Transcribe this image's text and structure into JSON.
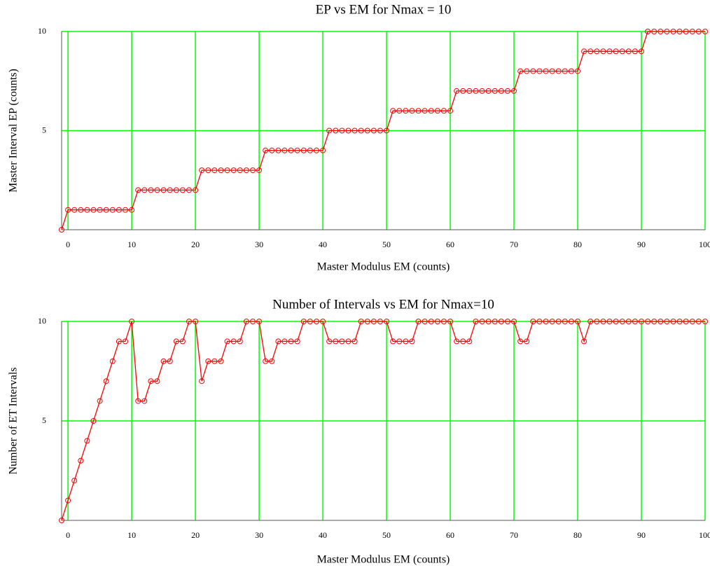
{
  "chart_data": [
    {
      "type": "line",
      "title": "EP vs EM for Nmax = 10",
      "x_label": "Master Modulus EM (counts)",
      "y_label": "Master Interval EP (counts)",
      "x": [
        -1,
        0,
        1,
        2,
        3,
        4,
        5,
        6,
        7,
        8,
        9,
        10,
        11,
        12,
        13,
        14,
        15,
        16,
        17,
        18,
        19,
        20,
        21,
        22,
        23,
        24,
        25,
        26,
        27,
        28,
        29,
        30,
        31,
        32,
        33,
        34,
        35,
        36,
        37,
        38,
        39,
        40,
        41,
        42,
        43,
        44,
        45,
        46,
        47,
        48,
        49,
        50,
        51,
        52,
        53,
        54,
        55,
        56,
        57,
        58,
        59,
        60,
        61,
        62,
        63,
        64,
        65,
        66,
        67,
        68,
        69,
        70,
        71,
        72,
        73,
        74,
        75,
        76,
        77,
        78,
        79,
        80,
        81,
        82,
        83,
        84,
        85,
        86,
        87,
        88,
        89,
        90,
        91,
        92,
        93,
        94,
        95,
        96,
        97,
        98,
        99,
        100
      ],
      "series": [
        {
          "color": "#ff0000",
          "values": [
            0,
            1,
            1,
            1,
            1,
            1,
            1,
            1,
            1,
            1,
            1,
            1,
            2,
            2,
            2,
            2,
            2,
            2,
            2,
            2,
            2,
            2,
            3,
            3,
            3,
            3,
            3,
            3,
            3,
            3,
            3,
            3,
            4,
            4,
            4,
            4,
            4,
            4,
            4,
            4,
            4,
            4,
            5,
            5,
            5,
            5,
            5,
            5,
            5,
            5,
            5,
            5,
            6,
            6,
            6,
            6,
            6,
            6,
            6,
            6,
            6,
            6,
            7,
            7,
            7,
            7,
            7,
            7,
            7,
            7,
            7,
            7,
            8,
            8,
            8,
            8,
            8,
            8,
            8,
            8,
            8,
            8,
            9,
            9,
            9,
            9,
            9,
            9,
            9,
            9,
            9,
            9,
            10,
            10,
            10,
            10,
            10,
            10,
            10,
            10,
            10,
            10
          ]
        }
      ],
      "xlim": [
        -1,
        100
      ],
      "xticks": [
        0,
        10,
        20,
        30,
        40,
        50,
        60,
        70,
        80,
        90,
        100
      ],
      "ylim": [
        0,
        10
      ],
      "yticks": [
        5,
        10
      ],
      "grid": true,
      "grid_color": "#00ff00"
    },
    {
      "type": "line",
      "title": "Number of Intervals vs EM for Nmax=10",
      "x_label": "Master Modulus EM (counts)",
      "y_label": "Number of ET Intervals",
      "x": [
        -1,
        0,
        1,
        2,
        3,
        4,
        5,
        6,
        7,
        8,
        9,
        10,
        11,
        12,
        13,
        14,
        15,
        16,
        17,
        18,
        19,
        20,
        21,
        22,
        23,
        24,
        25,
        26,
        27,
        28,
        29,
        30,
        31,
        32,
        33,
        34,
        35,
        36,
        37,
        38,
        39,
        40,
        41,
        42,
        43,
        44,
        45,
        46,
        47,
        48,
        49,
        50,
        51,
        52,
        53,
        54,
        55,
        56,
        57,
        58,
        59,
        60,
        61,
        62,
        63,
        64,
        65,
        66,
        67,
        68,
        69,
        70,
        71,
        72,
        73,
        74,
        75,
        76,
        77,
        78,
        79,
        80,
        81,
        82,
        83,
        84,
        85,
        86,
        87,
        88,
        89,
        90,
        91,
        92,
        93,
        94,
        95,
        96,
        97,
        98,
        99,
        100
      ],
      "series": [
        {
          "color": "#ff0000",
          "values": [
            0,
            1,
            2,
            3,
            4,
            5,
            6,
            7,
            8,
            9,
            9,
            10,
            6,
            6,
            7,
            7,
            8,
            8,
            9,
            9,
            10,
            10,
            7,
            8,
            8,
            8,
            9,
            9,
            9,
            10,
            10,
            10,
            8,
            8,
            9,
            9,
            9,
            9,
            10,
            10,
            10,
            10,
            9,
            9,
            9,
            9,
            9,
            10,
            10,
            10,
            10,
            10,
            9,
            9,
            9,
            9,
            10,
            10,
            10,
            10,
            10,
            10,
            9,
            9,
            9,
            10,
            10,
            10,
            10,
            10,
            10,
            10,
            9,
            9,
            10,
            10,
            10,
            10,
            10,
            10,
            10,
            10,
            9,
            10,
            10,
            10,
            10,
            10,
            10,
            10,
            10,
            10,
            10,
            10,
            10,
            10,
            10,
            10,
            10,
            10,
            10,
            10
          ]
        }
      ],
      "xlim": [
        -1,
        100
      ],
      "xticks": [
        0,
        10,
        20,
        30,
        40,
        50,
        60,
        70,
        80,
        90,
        100
      ],
      "ylim": [
        0,
        10
      ],
      "yticks": [
        5,
        10
      ],
      "grid": true,
      "grid_color": "#00ff00"
    }
  ]
}
